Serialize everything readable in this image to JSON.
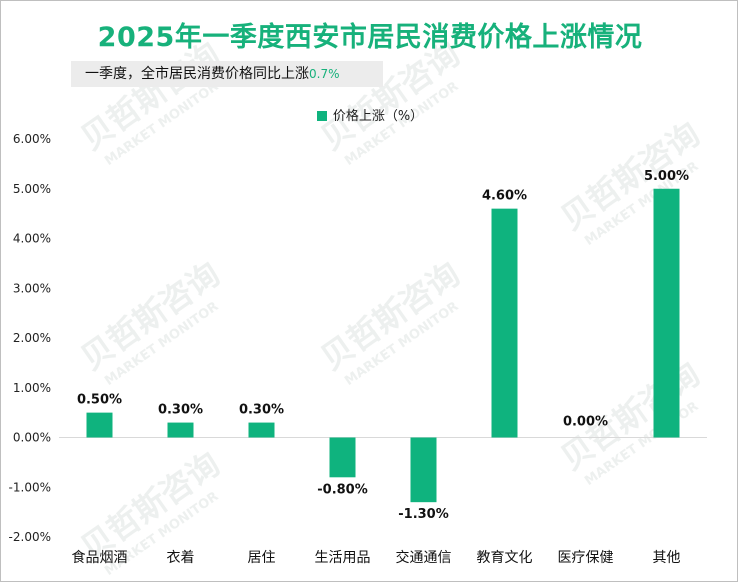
{
  "title": "2025年一季度西安市居民消费价格上涨情况",
  "subtitle": {
    "text": "一季度，全市居民消费价格同比上涨",
    "value": "0.7%"
  },
  "watermark": {
    "cn": "贝哲斯咨询",
    "en": "MARKET MONITOR"
  },
  "colors": {
    "bar": "#0fb37e",
    "title": "#17b17b"
  },
  "chart_data": {
    "type": "bar",
    "title": "2025年一季度西安市居民消费价格上涨情况",
    "legend": "价格上涨（%）",
    "categories": [
      "食品烟酒",
      "衣着",
      "居住",
      "生活用品",
      "交通通信",
      "教育文化",
      "医疗保健",
      "其他"
    ],
    "values": [
      0.5,
      0.3,
      0.3,
      -0.8,
      -1.3,
      4.6,
      0.0,
      5.0
    ],
    "data_labels": [
      "0.50%",
      "0.30%",
      "0.30%",
      "-0.80%",
      "-1.30%",
      "4.60%",
      "0.00%",
      "5.00%"
    ],
    "yticks": [
      6,
      5,
      4,
      3,
      2,
      1,
      0,
      -1,
      -2
    ],
    "ytick_labels": [
      "6.00%",
      "5.00%",
      "4.00%",
      "3.00%",
      "2.00%",
      "1.00%",
      "0.00%",
      "-1.00%",
      "-2.00%"
    ],
    "ylim": [
      -2,
      6
    ],
    "xlabel": "",
    "ylabel": "",
    "grid": false,
    "legend_position": "top-center"
  }
}
